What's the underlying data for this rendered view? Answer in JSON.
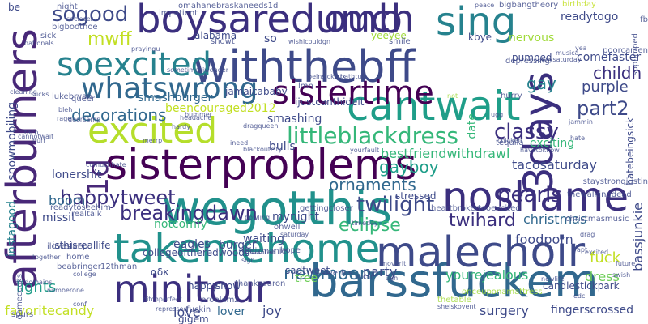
{
  "cloud": {
    "palette": {
      "dark_purple": "#440154",
      "indigo": "#3b2f7e",
      "blue": "#31688e",
      "teal": "#21918c",
      "green": "#35b779",
      "lime": "#a0da39",
      "yellow": "#d5e21a"
    },
    "words": [
      {
        "text": "afterburners",
        "color": "#482878"
      },
      {
        "text": "barssfuckem",
        "color": "#31688e"
      },
      {
        "text": "sisterproblems",
        "color": "#440154"
      },
      {
        "text": "wegotthis",
        "color": "#21918c"
      },
      {
        "text": "takemehome",
        "color": "#21918c"
      },
      {
        "text": "boysaredumb",
        "color": "#3b2f7e"
      },
      {
        "text": "withthebff",
        "color": "#3e4a89"
      },
      {
        "text": "soexcited",
        "color": "#26828e"
      },
      {
        "text": "whatswrong",
        "color": "#31688e"
      },
      {
        "text": "noshame",
        "color": "#3b2f7e"
      },
      {
        "text": "malechoir",
        "color": "#3e4a89"
      },
      {
        "text": "minitour",
        "color": "#3b2f7e"
      },
      {
        "text": "cantwait",
        "color": "#1f9e89"
      },
      {
        "text": "ouch",
        "color": "#3b2f7e"
      },
      {
        "text": "sing",
        "color": "#26828e"
      },
      {
        "text": "3days",
        "color": "#3b2f7e"
      },
      {
        "text": "1d",
        "color": "#482878"
      },
      {
        "text": "excited",
        "color": "#b5de2b"
      },
      {
        "text": "sistertime",
        "color": "#440154"
      },
      {
        "text": "sogood",
        "color": "#3e4a89"
      },
      {
        "text": "littleblackdress",
        "color": "#35b779"
      },
      {
        "text": "happytweet",
        "color": "#3b2f7e"
      },
      {
        "text": "breakingdawn",
        "color": "#3b2f7e"
      },
      {
        "text": "twilight",
        "color": "#3e4a89"
      },
      {
        "text": "eclipse",
        "color": "#35b779"
      },
      {
        "text": "newmoon",
        "color": "#31688e"
      },
      {
        "text": "classy",
        "color": "#3b2f7e"
      },
      {
        "text": "pearls",
        "color": "#3b2f7e"
      },
      {
        "text": "twihard",
        "color": "#3b2f7e"
      },
      {
        "text": "part2",
        "color": "#3e4a89"
      },
      {
        "text": "gayboy",
        "color": "#1f9e89"
      },
      {
        "text": "mwff",
        "color": "#c2df23"
      },
      {
        "text": "childh",
        "color": "#3b2f7e"
      },
      {
        "text": "gay",
        "color": "#26828e"
      },
      {
        "text": "purple",
        "color": "#3e4a89"
      },
      {
        "text": "christmas",
        "color": "#31688e"
      },
      {
        "text": "decorations",
        "color": "#31688e"
      },
      {
        "text": "ornaments",
        "color": "#31688e"
      },
      {
        "text": "snowmobiling",
        "color": "#3e4a89"
      },
      {
        "text": "instagood",
        "color": "#26828e"
      },
      {
        "text": "fuck",
        "color": "#c2df23"
      },
      {
        "text": "foodporn",
        "color": "#3e4a89"
      },
      {
        "text": "party",
        "color": "#3e4a89"
      },
      {
        "text": "dress",
        "color": "#6ece58"
      },
      {
        "text": "yourejealous",
        "color": "#35b779"
      },
      {
        "text": "lights",
        "color": "#1f9e89"
      },
      {
        "text": "tree",
        "color": "#6ece58"
      },
      {
        "text": "lover",
        "color": "#31688e"
      },
      {
        "text": "love",
        "color": "#3e4a89"
      },
      {
        "text": "joy",
        "color": "#3e4a89"
      },
      {
        "text": "favoritecandy",
        "color": "#c2df23"
      },
      {
        "text": "bassjunkie",
        "color": "#3e4a89"
      },
      {
        "text": "lonershit",
        "color": "#3e4a89"
      },
      {
        "text": "boom",
        "color": "#31688e"
      },
      {
        "text": "missit",
        "color": "#3e4a89"
      },
      {
        "text": "smashing",
        "color": "#3e4a89"
      },
      {
        "text": "bulls",
        "color": "#3e4a89"
      },
      {
        "text": "exciting",
        "color": "#35b779"
      },
      {
        "text": "date",
        "color": "#35b779"
      },
      {
        "text": "comefaster",
        "color": "#3e4a89"
      },
      {
        "text": "tacosaturday",
        "color": "#3e4a89"
      },
      {
        "text": "bestfriendwithdrawl",
        "color": "#35b779"
      },
      {
        "text": "beencouraged2012",
        "color": "#c2df23"
      },
      {
        "text": "smashburger",
        "color": "#31688e"
      },
      {
        "text": "jamaicababy",
        "color": "#3e4a89"
      },
      {
        "text": "stressed",
        "color": "#3e4a89"
      },
      {
        "text": "eagles",
        "color": "#3e4a89"
      },
      {
        "text": "burger",
        "color": "#3e4a89"
      },
      {
        "text": "waiting",
        "color": "#3e4a89"
      },
      {
        "text": "notcomfy",
        "color": "#35b779"
      },
      {
        "text": "mynight",
        "color": "#3e4a89"
      },
      {
        "text": "surgery",
        "color": "#3e4a89"
      },
      {
        "text": "fingerscrossed",
        "color": "#3e4a89"
      },
      {
        "text": "alabama",
        "color": "#3e4a89"
      },
      {
        "text": "so",
        "color": "#3e4a89"
      },
      {
        "text": "kbye",
        "color": "#3e4a89"
      },
      {
        "text": "readytogo",
        "color": "#3e4a89"
      },
      {
        "text": "pumped",
        "color": "#3e4a89"
      },
      {
        "text": "nervous",
        "color": "#a0da39"
      },
      {
        "text": "hatebeingsick",
        "color": "#3e4a89"
      },
      {
        "text": "ijustcanthideit",
        "color": "#3e4a89"
      },
      {
        "text": "candlestickpark",
        "color": "#3e4a89"
      },
      {
        "text": "isthisreallife",
        "color": "#3e4a89"
      },
      {
        "text": "collegeoftheredwoods",
        "color": "#3e4a89"
      },
      {
        "text": "sadtweet",
        "color": "#3e4a89"
      },
      {
        "text": "αδκ",
        "color": "#3e4a89"
      },
      {
        "text": "happy",
        "color": "#3e4a89"
      },
      {
        "text": "show",
        "color": "#3e4a89"
      },
      {
        "text": "gigem",
        "color": "#3e4a89"
      },
      {
        "text": "be",
        "color": "#3e4a89"
      },
      {
        "text": "yeeyee",
        "color": "#a0da39"
      },
      {
        "text": "lmn",
        "color": "#3e4a89"
      },
      {
        "text": "bigbangtheory",
        "color": "#3e4a89"
      },
      {
        "text": "omahanebraskaneeds1d",
        "color": "#3e4a89"
      },
      {
        "text": "sopumped",
        "color": "#3e4a89"
      },
      {
        "text": "birthday",
        "color": "#c2df23"
      },
      {
        "text": "poorcarsen",
        "color": "#3e4a89"
      },
      {
        "text": "fb",
        "color": "#3e4a89"
      },
      {
        "text": "night",
        "color": "#3e4a89"
      },
      {
        "text": "sick",
        "color": "#3e4a89"
      },
      {
        "text": "bigboothoe",
        "color": "#3e4a89"
      },
      {
        "text": "nationals",
        "color": "#3e4a89"
      },
      {
        "text": "impatient",
        "color": "#3e4a89"
      },
      {
        "text": "showt",
        "color": "#3e4a89"
      },
      {
        "text": "smile",
        "color": "#3e4a89"
      },
      {
        "text": "lukebryan",
        "color": "#3e4a89"
      },
      {
        "text": "queer",
        "color": "#3e4a89"
      },
      {
        "text": "12thman",
        "color": "#3e4a89"
      },
      {
        "text": "gamecocks",
        "color": "#3e4a89"
      },
      {
        "text": "ilovesleep",
        "color": "#3e4a89"
      },
      {
        "text": "readytoseehim",
        "color": "#3e4a89"
      },
      {
        "text": "realtalk",
        "color": "#3e4a89"
      },
      {
        "text": "bowling",
        "color": "#3e4a89"
      },
      {
        "text": "gettingcloser",
        "color": "#3e4a89"
      },
      {
        "text": "heartbroken",
        "color": "#3e4a89"
      },
      {
        "text": "tooexcited",
        "color": "#3e4a89"
      },
      {
        "text": "christmasmusic",
        "color": "#3e4a89"
      },
      {
        "text": "thewalkingdead",
        "color": "#3e4a89"
      },
      {
        "text": "ohwell",
        "color": "#3e4a89"
      },
      {
        "text": "heizmaniel",
        "color": "#3e4a89"
      },
      {
        "text": "hope",
        "color": "#3e4a89"
      },
      {
        "text": "home",
        "color": "#3e4a89"
      },
      {
        "text": "beabringer",
        "color": "#3e4a89"
      },
      {
        "text": "onceuponamattress",
        "color": "#a0da39"
      },
      {
        "text": "thetable",
        "color": "#a0da39"
      },
      {
        "text": "problemz",
        "color": "#3e4a89"
      },
      {
        "text": "pitchperfect",
        "color": "#3e4a89"
      },
      {
        "text": "spurs",
        "color": "#3e4a89"
      },
      {
        "text": "fuckin",
        "color": "#3e4a89"
      },
      {
        "text": "lovethis",
        "color": "#3e4a89"
      },
      {
        "text": "thanksaaron",
        "color": "#3e4a89"
      },
      {
        "text": "cleaning",
        "color": "#3e4a89"
      },
      {
        "text": "sexysaturday",
        "color": "#3e4a89"
      },
      {
        "text": "yea",
        "color": "#3e4a89"
      },
      {
        "text": "peace",
        "color": "#3e4a89"
      },
      {
        "text": "depressing",
        "color": "#3e4a89"
      },
      {
        "text": "staystrongjustin",
        "color": "#3e4a89"
      },
      {
        "text": "saturday",
        "color": "#3e4a89"
      },
      {
        "text": "timeday",
        "color": "#3e4a89"
      },
      {
        "text": "musica",
        "color": "#3e4a89"
      },
      {
        "text": "newlife",
        "color": "#3e4a89"
      },
      {
        "text": "drag",
        "color": "#3e4a89"
      },
      {
        "text": "excited",
        "color": "#3e4a89"
      },
      {
        "text": "apt",
        "color": "#3e4a89"
      },
      {
        "text": "rage",
        "color": "#3e4a89"
      },
      {
        "text": "hurry",
        "color": "#3e4a89"
      },
      {
        "text": "not",
        "color": "#a0da39"
      },
      {
        "text": "ugg",
        "color": "#3e4a89"
      },
      {
        "text": "jammin",
        "color": "#3e4a89"
      },
      {
        "text": "hardy",
        "color": "#3e4a89"
      },
      {
        "text": "bummer",
        "color": "#3e4a89"
      },
      {
        "text": "headache",
        "color": "#3e4a89"
      },
      {
        "text": "merrp",
        "color": "#3e4a89"
      },
      {
        "text": "ineed",
        "color": "#3e4a89"
      },
      {
        "text": "blackoutcity",
        "color": "#3e4a89"
      },
      {
        "text": "yourfault",
        "color": "#3e4a89"
      },
      {
        "text": "tequila",
        "color": "#3e4a89"
      },
      {
        "text": "chicken",
        "color": "#3e4a89"
      },
      {
        "text": "hate",
        "color": "#3e4a89"
      },
      {
        "text": "havetoknow",
        "color": "#3e4a89"
      },
      {
        "text": "deercamp",
        "color": "#3e4a89"
      },
      {
        "text": "dragqueen",
        "color": "#3e4a89"
      },
      {
        "text": "beinsicksux",
        "color": "#3e4a89"
      },
      {
        "text": "bathtub",
        "color": "#3e4a89"
      },
      {
        "text": "sometimesiwonder",
        "color": "#3e4a89"
      },
      {
        "text": "prayingu",
        "color": "#3e4a89"
      },
      {
        "text": "wishicouldgn",
        "color": "#3e4a89"
      },
      {
        "text": "socloser",
        "color": "#3e4a89"
      },
      {
        "text": "sigh",
        "color": "#3e4a89"
      },
      {
        "text": "unwanted",
        "color": "#3e4a89"
      },
      {
        "text": "imoverit",
        "color": "#3e4a89"
      },
      {
        "text": "nocar",
        "color": "#3e4a89"
      },
      {
        "text": "ugh",
        "color": "#3e4a89"
      },
      {
        "text": "together",
        "color": "#3e4a89"
      },
      {
        "text": "lordomains",
        "color": "#3e4a89"
      },
      {
        "text": "college",
        "color": "#3e4a89"
      },
      {
        "text": "numberone",
        "color": "#3e4a89"
      },
      {
        "text": "conf",
        "color": "#3e4a89"
      },
      {
        "text": "repressed",
        "color": "#3e4a89"
      },
      {
        "text": "sheiskovent",
        "color": "#3e4a89"
      },
      {
        "text": "edc",
        "color": "#3e4a89"
      },
      {
        "text": "future",
        "color": "#3e4a89"
      },
      {
        "text": "swish",
        "color": "#3e4a89"
      },
      {
        "text": "sucks",
        "color": "#3e4a89"
      },
      {
        "text": "bleh",
        "color": "#3e4a89"
      },
      {
        "text": "taco",
        "color": "#3e4a89"
      },
      {
        "text": "hurr",
        "color": "#3e4a89"
      },
      {
        "text": "cannotwait",
        "color": "#3e4a89"
      },
      {
        "text": "comuchhate",
        "color": "#3e4a89"
      },
      {
        "text": "bahbah",
        "color": "#3e4a89"
      }
    ]
  }
}
